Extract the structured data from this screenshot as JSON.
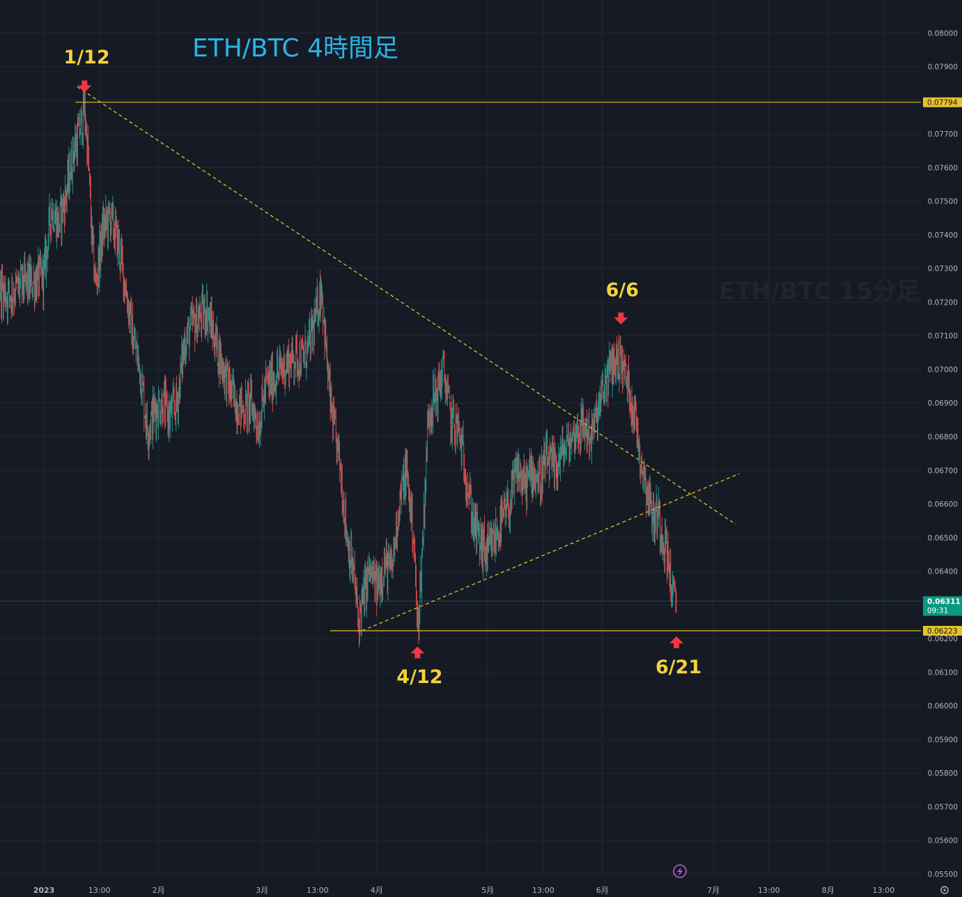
{
  "chart_title": "ETH/BTC 4時間足",
  "watermark": "ETH/BTC 15分足",
  "colors": {
    "background": "#161a25",
    "grid": "#232733",
    "up": "#26a69a",
    "down": "#ef5350",
    "horizontal_line": "#e6c229",
    "trend_line": "#e6c229",
    "arrow": "#f23645",
    "label": "#f2d33a",
    "title": "#2bb3e6",
    "current_price_badge": "#089981",
    "axis_text": "#b2b5be"
  },
  "chart_data": {
    "type": "candlestick",
    "title": "ETH/BTC 4時間足",
    "ylim": [
      0.055,
      0.081
    ],
    "y_ticks": [
      "0.08000",
      "0.07900",
      "0.07800",
      "0.07700",
      "0.07600",
      "0.07500",
      "0.07400",
      "0.07300",
      "0.07200",
      "0.07100",
      "0.07000",
      "0.06900",
      "0.06800",
      "0.06700",
      "0.06600",
      "0.06500",
      "0.06400",
      "0.06300",
      "0.06200",
      "0.06100",
      "0.06000",
      "0.05900",
      "0.05800",
      "0.05700",
      "0.05600",
      "0.05500"
    ],
    "x_ticks": [
      {
        "label": "2023",
        "date": "2023-01-01"
      },
      {
        "label": "13:00",
        "date": "2023-01-16"
      },
      {
        "label": "2月",
        "date": "2023-02-01"
      },
      {
        "label": "3月",
        "date": "2023-03-01"
      },
      {
        "label": "13:00",
        "date": "2023-03-16"
      },
      {
        "label": "4月",
        "date": "2023-04-01"
      },
      {
        "label": "5月",
        "date": "2023-05-01"
      },
      {
        "label": "13:00",
        "date": "2023-05-16"
      },
      {
        "label": "6月",
        "date": "2023-06-01"
      },
      {
        "label": "7月",
        "date": "2023-07-01"
      },
      {
        "label": "13:00",
        "date": "2023-07-16"
      },
      {
        "label": "8月",
        "date": "2023-08-01"
      },
      {
        "label": "13:00",
        "date": "2023-08-16"
      }
    ],
    "price_path": [
      [
        "2022-12-14",
        0.0728
      ],
      [
        "2022-12-18",
        0.0727
      ],
      [
        "2022-12-22",
        0.0722
      ],
      [
        "2022-12-26",
        0.0725
      ],
      [
        "2022-12-29",
        0.0726
      ],
      [
        "2023-01-01",
        0.0728
      ],
      [
        "2023-01-03",
        0.0748
      ],
      [
        "2023-01-05",
        0.0743
      ],
      [
        "2023-01-07",
        0.0752
      ],
      [
        "2023-01-09",
        0.0765
      ],
      [
        "2023-01-11",
        0.0772
      ],
      [
        "2023-01-12",
        0.0778
      ],
      [
        "2023-01-13",
        0.0762
      ],
      [
        "2023-01-14",
        0.0738
      ],
      [
        "2023-01-15",
        0.0725
      ],
      [
        "2023-01-17",
        0.0742
      ],
      [
        "2023-01-19",
        0.0745
      ],
      [
        "2023-01-21",
        0.0738
      ],
      [
        "2023-01-23",
        0.0725
      ],
      [
        "2023-01-25",
        0.071
      ],
      [
        "2023-01-27",
        0.07
      ],
      [
        "2023-01-29",
        0.0682
      ],
      [
        "2023-01-31",
        0.0688
      ],
      [
        "2023-02-02",
        0.069
      ],
      [
        "2023-02-04",
        0.0686
      ],
      [
        "2023-02-06",
        0.069
      ],
      [
        "2023-02-08",
        0.0708
      ],
      [
        "2023-02-10",
        0.0713
      ],
      [
        "2023-02-12",
        0.0715
      ],
      [
        "2023-02-14",
        0.0718
      ],
      [
        "2023-02-16",
        0.071
      ],
      [
        "2023-02-18",
        0.0702
      ],
      [
        "2023-02-20",
        0.0695
      ],
      [
        "2023-02-22",
        0.069
      ],
      [
        "2023-02-24",
        0.0688
      ],
      [
        "2023-02-26",
        0.069
      ],
      [
        "2023-02-28",
        0.0683
      ],
      [
        "2023-03-02",
        0.0695
      ],
      [
        "2023-03-04",
        0.0697
      ],
      [
        "2023-03-06",
        0.07
      ],
      [
        "2023-03-08",
        0.0702
      ],
      [
        "2023-03-10",
        0.0704
      ],
      [
        "2023-03-12",
        0.0703
      ],
      [
        "2023-03-14",
        0.0708
      ],
      [
        "2023-03-16",
        0.0718
      ],
      [
        "2023-03-17",
        0.0725
      ],
      [
        "2023-03-18",
        0.071
      ],
      [
        "2023-03-19",
        0.0695
      ],
      [
        "2023-03-20",
        0.0685
      ],
      [
        "2023-03-22",
        0.0672
      ],
      [
        "2023-03-24",
        0.065
      ],
      [
        "2023-03-26",
        0.0637
      ],
      [
        "2023-03-27",
        0.0625
      ],
      [
        "2023-03-28",
        0.063
      ],
      [
        "2023-03-30",
        0.064
      ],
      [
        "2023-04-01",
        0.0635
      ],
      [
        "2023-04-03",
        0.0642
      ],
      [
        "2023-04-05",
        0.064
      ],
      [
        "2023-04-07",
        0.066
      ],
      [
        "2023-04-09",
        0.067
      ],
      [
        "2023-04-11",
        0.065
      ],
      [
        "2023-04-12",
        0.0622
      ],
      [
        "2023-04-13",
        0.064
      ],
      [
        "2023-04-15",
        0.0688
      ],
      [
        "2023-04-17",
        0.0692
      ],
      [
        "2023-04-19",
        0.07
      ],
      [
        "2023-04-21",
        0.0685
      ],
      [
        "2023-04-23",
        0.0682
      ],
      [
        "2023-04-25",
        0.067
      ],
      [
        "2023-04-27",
        0.0655
      ],
      [
        "2023-04-29",
        0.0648
      ],
      [
        "2023-05-01",
        0.0645
      ],
      [
        "2023-05-03",
        0.065
      ],
      [
        "2023-05-05",
        0.0655
      ],
      [
        "2023-05-07",
        0.066
      ],
      [
        "2023-05-09",
        0.067
      ],
      [
        "2023-05-11",
        0.0665
      ],
      [
        "2023-05-13",
        0.067
      ],
      [
        "2023-05-15",
        0.0667
      ],
      [
        "2023-05-17",
        0.0673
      ],
      [
        "2023-05-19",
        0.067
      ],
      [
        "2023-05-21",
        0.0675
      ],
      [
        "2023-05-23",
        0.0678
      ],
      [
        "2023-05-25",
        0.0682
      ],
      [
        "2023-05-27",
        0.0683
      ],
      [
        "2023-05-29",
        0.068
      ],
      [
        "2023-05-31",
        0.0688
      ],
      [
        "2023-06-02",
        0.0697
      ],
      [
        "2023-06-04",
        0.0702
      ],
      [
        "2023-06-06",
        0.0703
      ],
      [
        "2023-06-08",
        0.0695
      ],
      [
        "2023-06-10",
        0.0685
      ],
      [
        "2023-06-11",
        0.0676
      ],
      [
        "2023-06-12",
        0.067
      ],
      [
        "2023-06-14",
        0.066
      ],
      [
        "2023-06-15",
        0.0655
      ],
      [
        "2023-06-16",
        0.0658
      ],
      [
        "2023-06-17",
        0.0652
      ],
      [
        "2023-06-18",
        0.0648
      ],
      [
        "2023-06-19",
        0.0642
      ],
      [
        "2023-06-20",
        0.0632
      ],
      [
        "2023-06-21",
        0.0631
      ]
    ],
    "resistance_line": {
      "price": 0.07794,
      "label": "0.07794"
    },
    "support_line": {
      "price": 0.06223,
      "label": "0.06223"
    },
    "current_price": {
      "price": 0.06311,
      "label": "0.06311",
      "countdown": "09:31"
    },
    "trend_lines": [
      {
        "name": "down",
        "start": [
          "2023-01-10",
          0.0784
        ],
        "end": [
          "2023-07-07",
          0.0654
        ]
      },
      {
        "name": "up",
        "start": [
          "2023-03-28",
          0.06223
        ],
        "end": [
          "2023-07-08",
          0.0669
        ]
      }
    ],
    "annotations": [
      {
        "text": "1/12",
        "date": "2023-01-12",
        "price": 0.0778,
        "direction": "down"
      },
      {
        "text": "4/12",
        "date": "2023-04-12",
        "price": 0.0622,
        "direction": "up"
      },
      {
        "text": "6/6",
        "date": "2023-06-06",
        "price": 0.0709,
        "direction": "down"
      },
      {
        "text": "6/21",
        "date": "2023-06-21",
        "price": 0.0625,
        "direction": "up"
      }
    ]
  }
}
